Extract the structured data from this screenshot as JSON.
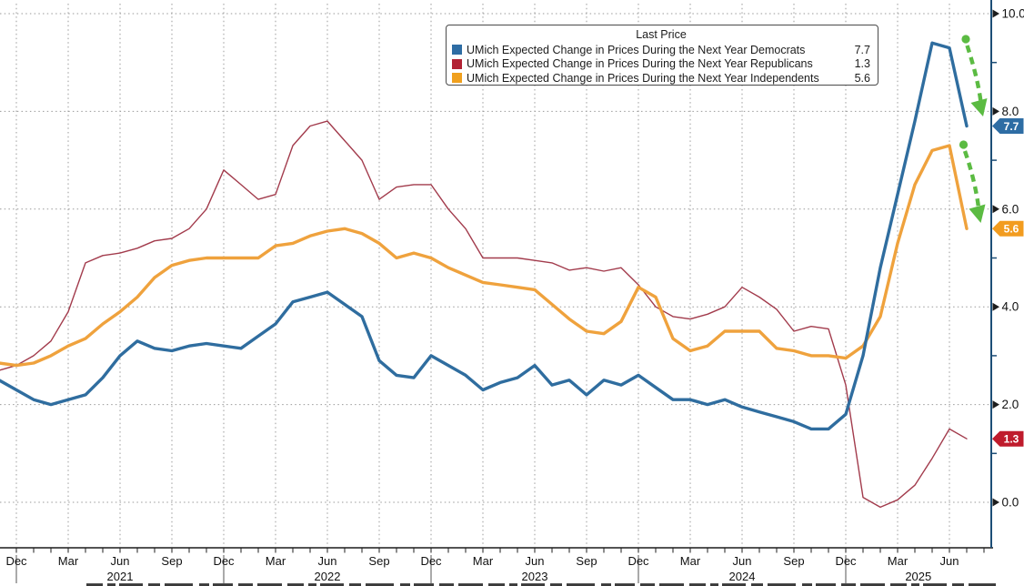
{
  "chart_data": {
    "type": "line",
    "title": "",
    "start_month": "2020-11",
    "end_month": "2025-07",
    "frequency": "monthly",
    "grid": "dotted",
    "legend_position": "top-center",
    "ylim": [
      -0.95,
      10.3
    ],
    "y_axis_side": "right",
    "y_ticks_labeled": [
      "0.0",
      "2.0",
      "4.0",
      "6.0",
      "8.0",
      "10.0"
    ],
    "y_tick_values": [
      0,
      2,
      4,
      6,
      8,
      10
    ],
    "y_minor_tick_values": [
      1,
      3,
      5,
      7,
      9
    ],
    "x_quarter_tick_labels": [
      "Dec",
      "Mar",
      "Jun",
      "Sep",
      "Dec",
      "Mar",
      "Jun",
      "Sep",
      "Dec",
      "Mar",
      "Jun",
      "Sep",
      "Dec",
      "Mar",
      "Jun",
      "Sep",
      "Dec",
      "Mar",
      "Jun"
    ],
    "x_quarter_tick_months": [
      0,
      3,
      6,
      9,
      12,
      15,
      18,
      21,
      24,
      27,
      30,
      33,
      36,
      39,
      42,
      45,
      48,
      51,
      54
    ],
    "x_year_labels": [
      {
        "text": "2021",
        "month_center": 6
      },
      {
        "text": "2022",
        "month_center": 18
      },
      {
        "text": "2023",
        "month_center": 30
      },
      {
        "text": "2024",
        "month_center": 42
      },
      {
        "text": "2025",
        "month_center": 52.2
      }
    ],
    "year_separator_months": [
      0,
      12,
      24,
      36,
      48
    ],
    "series": [
      {
        "name": "UMich Expected Change in Prices During the Next Year Democrats",
        "key": "democrats",
        "line_color": "#2f6d9f",
        "tag_color": "#2e6da4",
        "line_width": 3.4,
        "last_price": "7.7",
        "values": [
          2.5,
          2.3,
          2.1,
          2.0,
          2.1,
          2.2,
          2.55,
          3.0,
          3.3,
          3.15,
          3.1,
          3.2,
          3.25,
          3.2,
          3.15,
          3.4,
          3.65,
          4.1,
          4.2,
          4.3,
          4.05,
          3.8,
          2.9,
          2.6,
          2.55,
          3.0,
          2.8,
          2.6,
          2.3,
          2.45,
          2.55,
          2.8,
          2.4,
          2.5,
          2.2,
          2.5,
          2.4,
          2.6,
          2.35,
          2.1,
          2.1,
          2.0,
          2.1,
          1.95,
          1.85,
          1.75,
          1.65,
          1.5,
          1.5,
          1.8,
          3.0,
          4.8,
          6.3,
          7.8,
          9.4,
          9.3,
          7.7
        ]
      },
      {
        "name": "UMich Expected Change in Prices During the Next Year Republicans",
        "key": "republicans",
        "line_color": "#a23b4c",
        "tag_color": "#bf1b2c",
        "line_width": 1.4,
        "last_price": "1.3",
        "values": [
          2.7,
          2.8,
          3.0,
          3.3,
          3.9,
          4.9,
          5.05,
          5.1,
          5.2,
          5.35,
          5.4,
          5.6,
          6.0,
          6.8,
          6.5,
          6.2,
          6.3,
          7.3,
          7.7,
          7.8,
          7.4,
          7.0,
          6.2,
          6.45,
          6.5,
          6.5,
          6.0,
          5.6,
          5.0,
          5.0,
          5.0,
          4.95,
          4.9,
          4.75,
          4.8,
          4.73,
          4.8,
          4.45,
          4.0,
          3.8,
          3.75,
          3.85,
          4.0,
          4.4,
          4.2,
          3.95,
          3.5,
          3.6,
          3.55,
          2.4,
          0.1,
          -0.1,
          0.05,
          0.35,
          0.9,
          1.5,
          1.3
        ]
      },
      {
        "name": "UMich Expected Change in Prices During the Next Year Independents",
        "key": "independents",
        "line_color": "#efa23d",
        "tag_color": "#f29c1f",
        "line_width": 3.4,
        "last_price": "5.6",
        "values": [
          2.85,
          2.8,
          2.85,
          3.0,
          3.2,
          3.35,
          3.65,
          3.9,
          4.2,
          4.6,
          4.85,
          4.95,
          5.0,
          5.0,
          5.0,
          5.0,
          5.25,
          5.3,
          5.45,
          5.55,
          5.6,
          5.5,
          5.3,
          5.0,
          5.1,
          5.0,
          4.8,
          4.65,
          4.5,
          4.45,
          4.4,
          4.35,
          4.05,
          3.75,
          3.5,
          3.45,
          3.7,
          4.4,
          4.2,
          3.35,
          3.1,
          3.2,
          3.5,
          3.5,
          3.5,
          3.15,
          3.1,
          3.0,
          3.0,
          2.95,
          3.2,
          3.8,
          5.3,
          6.5,
          7.2,
          7.3,
          5.6
        ]
      }
    ],
    "draw_order": [
      "republicans",
      "independents",
      "democrats"
    ]
  },
  "legend": {
    "title": "Last Price",
    "rows": [
      {
        "label": "UMich Expected Change in Prices During the Next Year Democrats",
        "value": "7.7",
        "color": "#2e6da4"
      },
      {
        "label": "UMich Expected Change in Prices During the Next Year Republicans",
        "value": "1.3",
        "color": "#b22234"
      },
      {
        "label": "UMich Expected Change in Prices During the Next Year Independents",
        "value": "5.6",
        "color": "#f0a01e"
      }
    ]
  },
  "price_tags": [
    {
      "series": "democrats",
      "text": "7.7"
    },
    {
      "series": "independents",
      "text": "5.6"
    },
    {
      "series": "republicans",
      "text": "1.3"
    }
  ],
  "annotations": {
    "trend_arrows": [
      {
        "target_series": "democrats",
        "direction": "down",
        "color": "#5bbb42"
      },
      {
        "target_series": "independents",
        "direction": "down",
        "color": "#5bbb42"
      }
    ]
  },
  "colors": {
    "background": "#ffffff",
    "gridline": "#9a9a9a",
    "axis_line": "#1d4e77",
    "baseline": "#1c1c1c",
    "tick_text": "#111111",
    "arrow_green": "#5bbb42"
  }
}
